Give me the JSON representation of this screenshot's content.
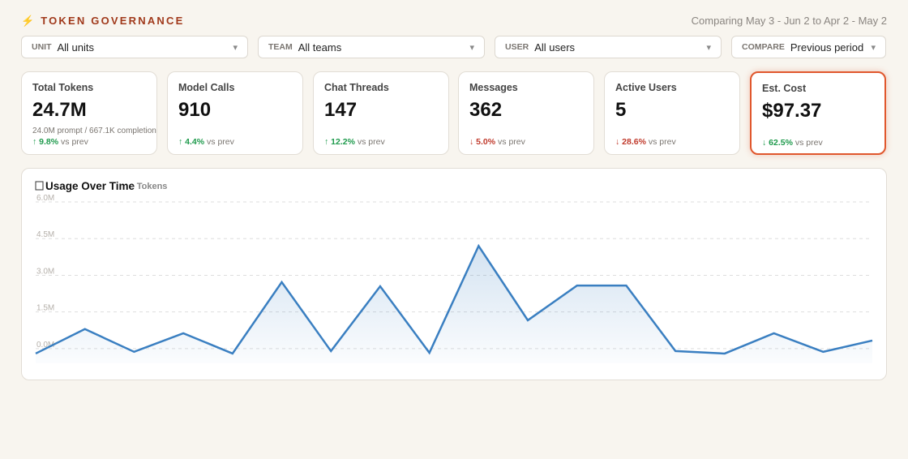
{
  "header": {
    "title": "⚡ TOKEN GOVERNANCE",
    "comparison": "Comparing May 3 - Jun 2 to Apr 2 - May 2"
  },
  "filters": [
    {
      "label": "UNIT",
      "value": "All units"
    },
    {
      "label": "TEAM",
      "value": "All teams"
    },
    {
      "label": "USER",
      "value": "All users"
    },
    {
      "label": "COMPARE",
      "value": "Previous period"
    }
  ],
  "cards": [
    {
      "label": "Total Tokens",
      "value": "24.7M",
      "detail": "24.0M prompt / 667.1K completion",
      "change": "↑ 9.8%",
      "compare": "vs prev",
      "color": "#1e9a4c"
    },
    {
      "label": "Model Calls",
      "value": "910",
      "change": "↑ 4.4%",
      "compare": "vs prev",
      "color": "#1e9a4c"
    },
    {
      "label": "Chat Threads",
      "value": "147",
      "change": "↑ 12.2%",
      "compare": "vs prev",
      "color": "#1e9a4c"
    },
    {
      "label": "Messages",
      "value": "362",
      "change": "↓ 5.0%",
      "compare": "vs prev",
      "color": "#c0392b"
    },
    {
      "label": "Active Users",
      "value": "5",
      "change": "↓ 28.6%",
      "compare": "vs prev",
      "color": "#c0392b"
    },
    {
      "label": "Est. Cost",
      "value": "$97.37",
      "change": "↓ 62.5%",
      "compare": "vs prev",
      "color": "#1e9a4c",
      "highlight": true
    }
  ],
  "chart_data": {
    "type": "area",
    "title": "Usage Over Time",
    "subtitle": "· Tokens",
    "color": "#3a7fc1",
    "categories": [
      null,
      null,
      null,
      null,
      null,
      null,
      null,
      null,
      null,
      null,
      null,
      null,
      null,
      null,
      null,
      null,
      null,
      null
    ],
    "values": [
      -0.2,
      0.8,
      -0.13,
      0.63,
      -0.2,
      2.72,
      -0.1,
      2.55,
      -0.17,
      4.2,
      1.16,
      2.58,
      2.58,
      -0.1,
      -0.2,
      0.63,
      -0.13,
      0.33
    ],
    "ylim": [
      -0.6,
      6.0
    ],
    "yticks": [
      {
        "value": 0,
        "label": "0.0M"
      },
      {
        "value": 1.5,
        "label": "1.5M"
      },
      {
        "value": 3,
        "label": "3.0M"
      },
      {
        "value": 4.5,
        "label": "4.5M"
      },
      {
        "value": 6,
        "label": "6.0M"
      }
    ],
    "grid": true
  }
}
